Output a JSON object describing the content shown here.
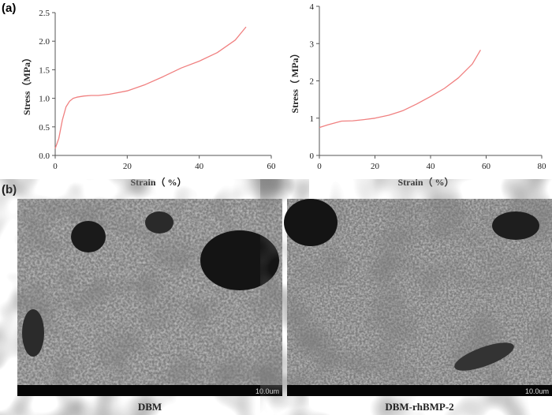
{
  "panels": {
    "a": "(a)",
    "b": "(b)"
  },
  "chart_data": [
    {
      "type": "line",
      "xlabel": "Strain（ %）",
      "ylabel": "Stress（MPa）",
      "xlim": [
        0,
        60
      ],
      "ylim": [
        0,
        2.5
      ],
      "xticks": [
        "0",
        "20",
        "40",
        "60"
      ],
      "yticks": [
        "0.0",
        "0.5",
        "1.0",
        "1.5",
        "2.0",
        "2.5"
      ],
      "line_color": "#f08080",
      "series": [
        {
          "x": [
            0,
            1,
            2,
            3,
            4,
            5,
            6,
            8,
            10,
            12,
            15,
            20,
            25,
            30,
            35,
            40,
            45,
            50,
            53
          ],
          "y": [
            0.12,
            0.3,
            0.62,
            0.85,
            0.95,
            1.0,
            1.02,
            1.04,
            1.05,
            1.05,
            1.07,
            1.13,
            1.24,
            1.38,
            1.53,
            1.65,
            1.8,
            2.02,
            2.25
          ]
        }
      ]
    },
    {
      "type": "line",
      "xlabel": "Strain（ %）",
      "ylabel": "Stress（ MPa）",
      "xlim": [
        0,
        80
      ],
      "ylim": [
        0,
        4
      ],
      "xticks": [
        "0",
        "20",
        "40",
        "60",
        "80"
      ],
      "yticks": [
        "0",
        "1",
        "2",
        "3",
        "4"
      ],
      "line_color": "#f08080",
      "series": [
        {
          "x": [
            0,
            3,
            6,
            8,
            12,
            16,
            20,
            25,
            30,
            35,
            40,
            45,
            50,
            55,
            58
          ],
          "y": [
            0.75,
            0.82,
            0.88,
            0.92,
            0.93,
            0.96,
            1.0,
            1.08,
            1.2,
            1.38,
            1.58,
            1.8,
            2.08,
            2.45,
            2.83
          ]
        }
      ]
    }
  ],
  "images": [
    {
      "caption": "DBM",
      "scale_label": "10.0um"
    },
    {
      "caption": "DBM-rhBMP-2",
      "scale_label": "10.0um"
    }
  ]
}
